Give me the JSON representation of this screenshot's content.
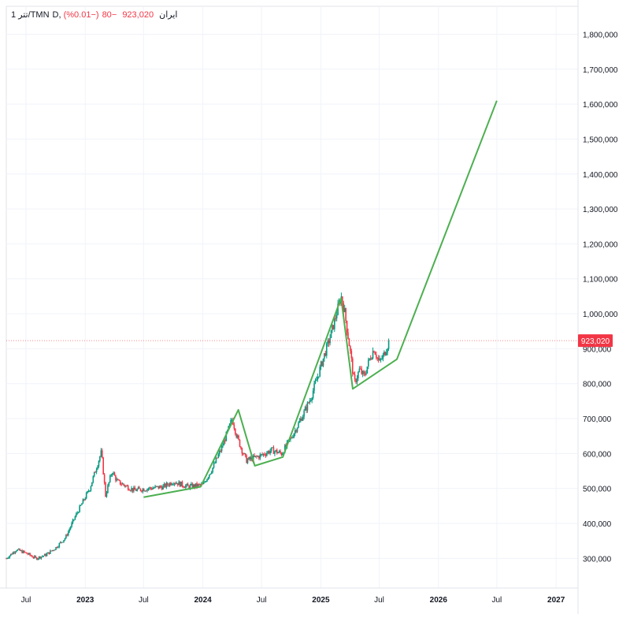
{
  "legend": {
    "symbol": "1 تتر/TMN",
    "exchange": "D, ایران",
    "last": "923,020",
    "change": "−80",
    "change_pct": "(−0.01%)"
  },
  "colors": {
    "up": "#089981",
    "down": "#f23645",
    "trend": "#4caf50",
    "grid": "#f0f3fa",
    "axis_text": "#131722"
  },
  "chart_data": {
    "type": "candlestick",
    "y_axis_labels": [
      "1,800,000",
      "1,700,000",
      "1,600,000",
      "1,500,000",
      "1,400,000",
      "1,300,000",
      "1,200,000",
      "1,100,000",
      "1,000,000",
      "900,000",
      "800,000",
      "700,000",
      "600,000",
      "500,000",
      "400,000",
      "300,000"
    ],
    "y_axis_values": [
      1800000,
      1700000,
      1600000,
      1500000,
      1400000,
      1300000,
      1200000,
      1100000,
      1000000,
      900000,
      800000,
      700000,
      600000,
      500000,
      400000,
      300000
    ],
    "x_axis_labels": [
      {
        "label": "Jul",
        "date": "2022-07-01",
        "bold": false
      },
      {
        "label": "2023",
        "date": "2023-01-01",
        "bold": true
      },
      {
        "label": "Jul",
        "date": "2023-07-01",
        "bold": false
      },
      {
        "label": "2024",
        "date": "2024-01-01",
        "bold": true
      },
      {
        "label": "Jul",
        "date": "2024-07-01",
        "bold": false
      },
      {
        "label": "2025",
        "date": "2025-01-01",
        "bold": true
      },
      {
        "label": "Jul",
        "date": "2025-07-01",
        "bold": false
      },
      {
        "label": "2026",
        "date": "2026-01-01",
        "bold": true
      },
      {
        "label": "Jul",
        "date": "2026-07-01",
        "bold": false
      },
      {
        "label": "2027",
        "date": "2027-01-01",
        "bold": true
      }
    ],
    "x_range": [
      "2022-05-01",
      "2027-03-10"
    ],
    "y_range": [
      215000,
      1880000
    ],
    "price_path": [
      [
        "2022-05-01",
        300000
      ],
      [
        "2022-06-01",
        325000
      ],
      [
        "2022-07-01",
        315000
      ],
      [
        "2022-08-01",
        300000
      ],
      [
        "2022-09-01",
        310000
      ],
      [
        "2022-10-01",
        330000
      ],
      [
        "2022-11-01",
        360000
      ],
      [
        "2022-12-01",
        420000
      ],
      [
        "2023-01-15",
        500000
      ],
      [
        "2023-02-20",
        605000
      ],
      [
        "2023-03-05",
        480000
      ],
      [
        "2023-03-25",
        550000
      ],
      [
        "2023-04-10",
        520000
      ],
      [
        "2023-05-01",
        510000
      ],
      [
        "2023-06-01",
        495000
      ],
      [
        "2023-07-15",
        500000
      ],
      [
        "2023-09-01",
        505000
      ],
      [
        "2023-10-01",
        520000
      ],
      [
        "2023-11-15",
        505000
      ],
      [
        "2024-01-01",
        510000
      ],
      [
        "2024-02-01",
        560000
      ],
      [
        "2024-03-01",
        620000
      ],
      [
        "2024-04-01",
        700000
      ],
      [
        "2024-04-15",
        650000
      ],
      [
        "2024-05-01",
        610000
      ],
      [
        "2024-05-15",
        580000
      ],
      [
        "2024-06-01",
        585000
      ],
      [
        "2024-07-01",
        595000
      ],
      [
        "2024-08-01",
        610000
      ],
      [
        "2024-09-01",
        600000
      ],
      [
        "2024-10-01",
        645000
      ],
      [
        "2024-11-01",
        700000
      ],
      [
        "2024-12-01",
        760000
      ],
      [
        "2025-01-01",
        850000
      ],
      [
        "2025-02-01",
        940000
      ],
      [
        "2025-03-05",
        1050000
      ],
      [
        "2025-03-15",
        1010000
      ],
      [
        "2025-04-01",
        900000
      ],
      [
        "2025-04-15",
        800000
      ],
      [
        "2025-05-01",
        840000
      ],
      [
        "2025-05-15",
        820000
      ],
      [
        "2025-06-01",
        870000
      ],
      [
        "2025-06-15",
        900000
      ],
      [
        "2025-07-01",
        860000
      ],
      [
        "2025-07-15",
        880000
      ],
      [
        "2025-08-01",
        923020
      ]
    ],
    "trend_lines": [
      [
        [
          "2023-07-01",
          475000
        ],
        [
          "2023-12-25",
          505000
        ],
        [
          "2024-04-20",
          725000
        ],
        [
          "2024-06-10",
          565000
        ],
        [
          "2024-09-05",
          590000
        ],
        [
          "2025-03-05",
          1045000
        ],
        [
          "2025-04-10",
          785000
        ],
        [
          "2025-08-25",
          870000
        ],
        [
          "2026-07-01",
          1610000
        ]
      ]
    ],
    "last_price": 923020,
    "last_price_label": "923,020"
  }
}
